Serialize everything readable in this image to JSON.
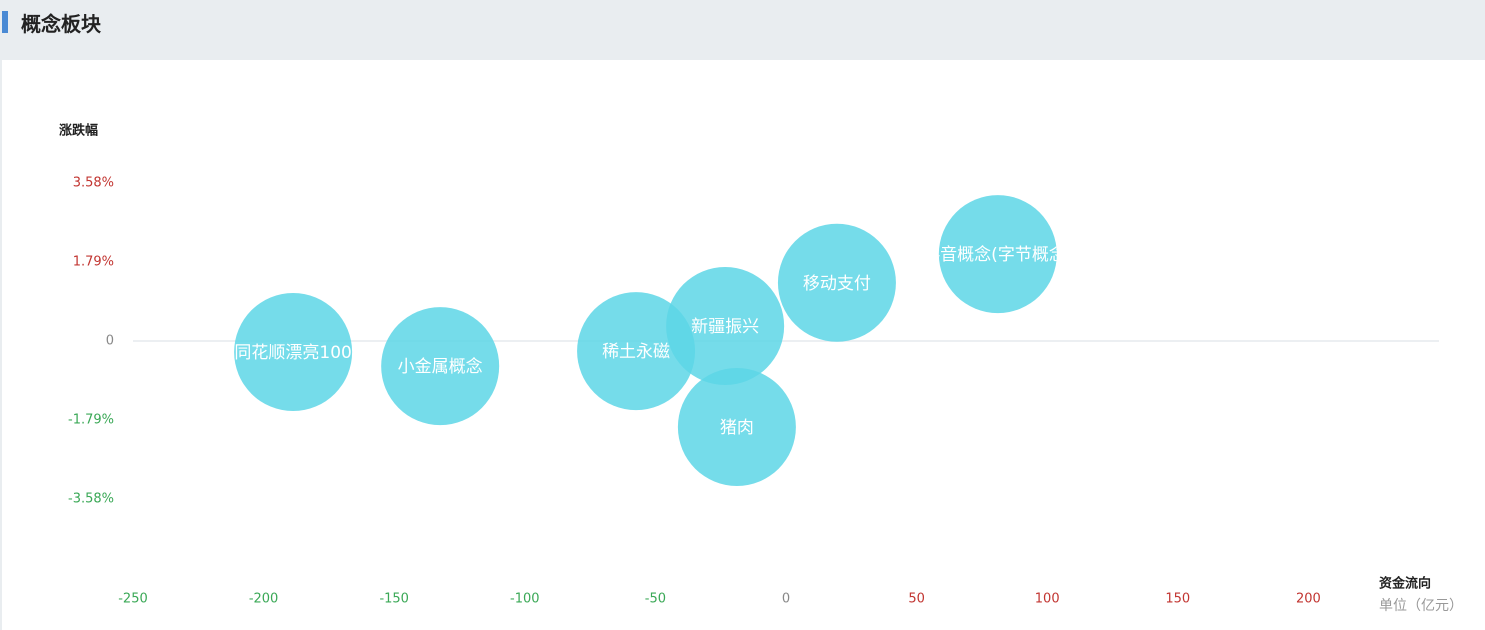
{
  "header": {
    "title": "概念板块"
  },
  "chart_data": {
    "type": "bubble",
    "ylabel": "涨跌幅",
    "xlabel": "资金流向",
    "unit_label": "单位（亿元）",
    "labels": [
      "同花顺漂亮100",
      "小金属概念",
      "稀土永磁",
      "新疆振兴",
      "猪肉",
      "移动支付",
      "抖音概念(字节概念)"
    ],
    "x": [
      -188.7,
      -132.4,
      -57.4,
      -23.3,
      -18.8,
      19.5,
      81.1
    ],
    "values": [
      -0.25,
      -0.57,
      -0.23,
      0.34,
      -1.95,
      1.32,
      1.97
    ],
    "color": "#5dd6e6",
    "xlim": [
      -250,
      250
    ],
    "xticks": [
      -250,
      -200,
      -150,
      -100,
      -50,
      0,
      50,
      100,
      150,
      200
    ],
    "ylim": [
      -5.85,
      5.85
    ],
    "yticks": [
      {
        "value": 3.58,
        "label": "3.58%"
      },
      {
        "value": 1.79,
        "label": "1.79%"
      },
      0,
      {
        "value": -1.79,
        "label": "-1.79%"
      },
      {
        "value": -3.58,
        "label": "-3.58%"
      }
    ]
  }
}
